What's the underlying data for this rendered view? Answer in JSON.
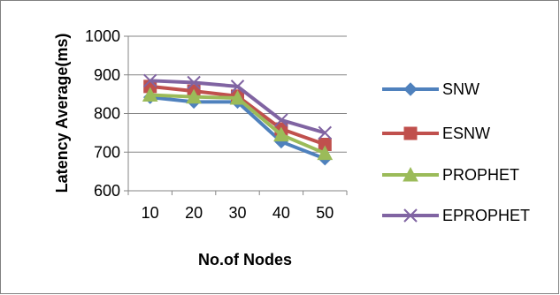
{
  "chart_data": {
    "type": "line",
    "categories": [
      "10",
      "20",
      "30",
      "40",
      "50"
    ],
    "series": [
      {
        "name": "SNW",
        "values": [
          842,
          830,
          830,
          727,
          683
        ],
        "color": "#4F81BD",
        "marker": "diamond"
      },
      {
        "name": "ESNW",
        "values": [
          870,
          858,
          845,
          760,
          720
        ],
        "color": "#C0504D",
        "marker": "square"
      },
      {
        "name": "PROPHET",
        "values": [
          848,
          843,
          840,
          745,
          697
        ],
        "color": "#9BBB59",
        "marker": "triangle"
      },
      {
        "name": "EPROPHET",
        "values": [
          885,
          880,
          870,
          783,
          750
        ],
        "color": "#8064A2",
        "marker": "x"
      }
    ],
    "xlabel": "No.of Nodes",
    "ylabel": "Latency Average(ms)",
    "ylim": [
      600,
      1000
    ],
    "yticks": [
      600,
      700,
      800,
      900,
      1000
    ],
    "grid": "horizontal",
    "legend": "right"
  }
}
